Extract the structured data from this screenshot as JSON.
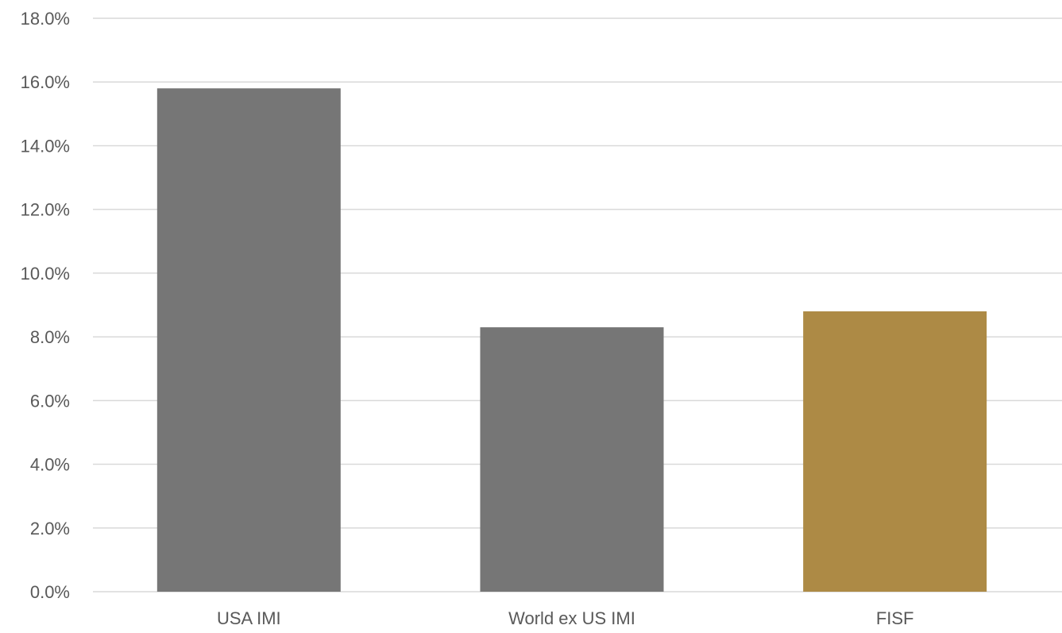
{
  "chart_data": {
    "type": "bar",
    "title": "",
    "xlabel": "",
    "ylabel": "",
    "categories": [
      "USA IMI",
      "World ex US IMI",
      "FISF"
    ],
    "values": [
      15.8,
      8.3,
      8.8
    ],
    "bar_colors": [
      "#767676",
      "#767676",
      "#ad8a45"
    ],
    "ylim": [
      0,
      18
    ],
    "y_ticks": [
      0,
      2,
      4,
      6,
      8,
      10,
      12,
      14,
      16,
      18
    ],
    "y_tick_labels": [
      "0.0%",
      "2.0%",
      "4.0%",
      "6.0%",
      "8.0%",
      "10.0%",
      "12.0%",
      "14.0%",
      "16.0%",
      "18.0%"
    ],
    "grid": true,
    "legend": "none"
  }
}
